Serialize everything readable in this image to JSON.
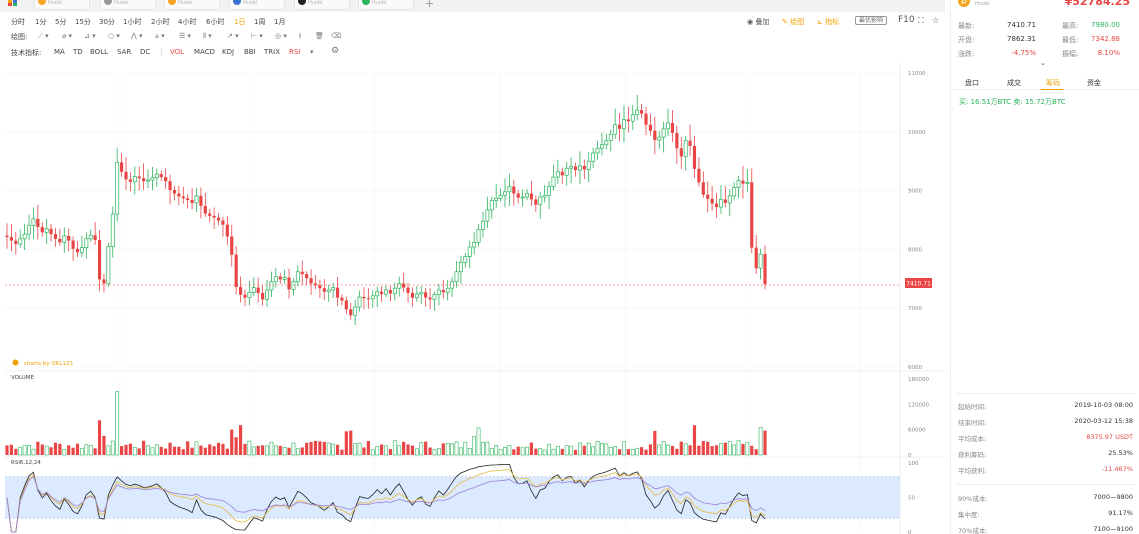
{
  "tabs": [
    {
      "label": "Huobi",
      "color": "#f5a623"
    },
    {
      "label": "Huobi",
      "color": "#999999"
    },
    {
      "label": "Huobi",
      "color": "#f5a623"
    },
    {
      "label": "Huobi",
      "color": "#3b6fd1"
    },
    {
      "label": "Huobi",
      "color": "#222222"
    },
    {
      "label": "Huobi",
      "color": "#2bb45b"
    }
  ],
  "timeframes": [
    "分时",
    "1分",
    "5分",
    "15分",
    "30分",
    "1小时",
    "2小时",
    "4小时",
    "6小时",
    "1日",
    "1周",
    "1月"
  ],
  "active_timeframe": "1日",
  "toolbar_right": {
    "add": "叠加",
    "draw": "绘图",
    "indicator": "指标",
    "compare": "最优影响",
    "f10": "F10"
  },
  "draw_label": "绘图:",
  "indicator_label": "技术指标:",
  "indicators_main": [
    "MA",
    "TD",
    "BOLL",
    "SAR",
    "DC"
  ],
  "indicators_sub": [
    "VOL",
    "MACD",
    "KDJ",
    "BBI",
    "TRIX",
    "RSI"
  ],
  "colors": {
    "up": "#2bb45b",
    "up_light": "#a8e2bd",
    "down": "#e94545",
    "down_light": "#f4b0b0",
    "accent": "#f0a100",
    "rsi_band": "#dbeaff"
  },
  "side": {
    "coin": "Huobi",
    "price": "¥52784.25",
    "row1": {
      "l1": "最新:",
      "v1": "7410.71",
      "l2": "最高:",
      "v2": "7980.00"
    },
    "row2": {
      "l1": "开盘:",
      "v1": "7862.31",
      "l2": "最低:",
      "v2": "7342.88"
    },
    "row3": {
      "l1": "涨跌:",
      "v1": "-4.75%",
      "l2": "振幅:",
      "v2": "8.10%"
    },
    "tabs": [
      "盘口",
      "成交",
      "筹码",
      "资金"
    ],
    "active_tab": "筹码",
    "holding": "买: 16.51万BTC  卖: 15.72万BTC",
    "stats": [
      {
        "label": "起始时间:",
        "value": "2019-10-03 08:00",
        "color": "#333333"
      },
      {
        "label": "结束时间:",
        "value": "2020-03-12 15:38",
        "color": "#333333"
      },
      {
        "label": "平均成本:",
        "value": "8375.97 USDT",
        "color": "#e94545"
      },
      {
        "label": "获利筹码:",
        "value": "25.53%",
        "color": "#333333"
      },
      {
        "label": "平均获利:",
        "value": "-11.467%",
        "color": "#e94545"
      },
      {
        "label": "90%成本:",
        "value": "7000—9800",
        "color": "#333333"
      },
      {
        "label": "集中度:",
        "value": "91.17%",
        "color": "#333333"
      },
      {
        "label": "70%成本:",
        "value": "7100—9100",
        "color": "#333333"
      }
    ]
  },
  "chart_data": {
    "type": "candlestick",
    "watermark": "charts by QKL123",
    "price_axis": {
      "min": 6000,
      "max": 11000,
      "ticks": [
        "11000",
        "10000",
        "9000",
        "8000",
        "7000",
        "6000"
      ]
    },
    "last_price_label": "7410.71",
    "volume_label": "VOLUME",
    "volume_axis": {
      "max": 180000,
      "ticks": [
        "180000",
        "120000",
        "60000",
        "0"
      ]
    },
    "rsi_label": "RSI6,12,24",
    "rsi_axis": {
      "ticks": [
        "100",
        "50",
        "0"
      ]
    },
    "chip_marker": "7000",
    "closes": [
      8210,
      8150,
      8090,
      8180,
      8260,
      8410,
      8520,
      8380,
      8290,
      8350,
      8260,
      8180,
      8120,
      8230,
      8150,
      8010,
      7950,
      8030,
      8180,
      8240,
      8160,
      7490,
      7420,
      8050,
      8600,
      9480,
      9320,
      9190,
      9150,
      9240,
      9210,
      9160,
      9180,
      9220,
      9280,
      9230,
      9160,
      9010,
      8950,
      8900,
      8870,
      8840,
      8790,
      8910,
      8740,
      8610,
      8570,
      8540,
      8490,
      8420,
      8220,
      7910,
      7360,
      7230,
      7180,
      7270,
      7350,
      7260,
      7150,
      7310,
      7450,
      7540,
      7490,
      7520,
      7320,
      7450,
      7620,
      7580,
      7510,
      7420,
      7390,
      7340,
      7280,
      7310,
      7350,
      7180,
      7130,
      6980,
      6880,
      7020,
      7190,
      7170,
      7160,
      7210,
      7280,
      7240,
      7310,
      7250,
      7340,
      7420,
      7350,
      7260,
      7180,
      7240,
      7270,
      7180,
      7150,
      7230,
      7310,
      7270,
      7340,
      7450,
      7620,
      7780,
      7880,
      8040,
      8120,
      8340,
      8480,
      8670,
      8830,
      8870,
      8920,
      8980,
      9070,
      8950,
      8880,
      8890,
      8950,
      8850,
      8760,
      8890,
      8920,
      9070,
      9230,
      9320,
      9260,
      9380,
      9410,
      9350,
      9420,
      9360,
      9500,
      9640,
      9720,
      9780,
      9850,
      9960,
      10120,
      10050,
      10210,
      10180,
      10290,
      10370,
      10310,
      10120,
      10020,
      9860,
      9910,
      10050,
      10150,
      9980,
      9720,
      9580,
      9850,
      9760,
      9370,
      9140,
      8930,
      8860,
      8780,
      8720,
      8850,
      8790,
      8910,
      9050,
      9170,
      9120,
      9140,
      8030,
      7680,
      7920,
      7410
    ]
  }
}
